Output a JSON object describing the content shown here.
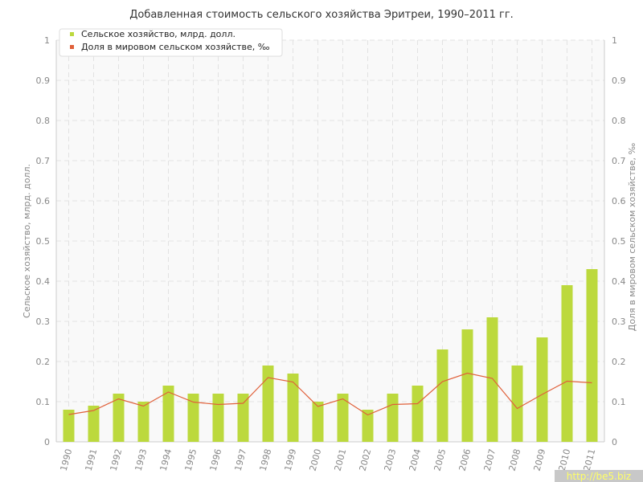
{
  "chart_data": {
    "type": "bar",
    "title": "Добавленная стоимость сельского хозяйства Эритреи, 1990–2011 гг.",
    "categories": [
      "1990",
      "1991",
      "1992",
      "1993",
      "1994",
      "1995",
      "1996",
      "1997",
      "1998",
      "1999",
      "2000",
      "2001",
      "2002",
      "2003",
      "2004",
      "2005",
      "2006",
      "2007",
      "2008",
      "2009",
      "2010",
      "2011"
    ],
    "ylabel": "Сельское хозяйство, млрд. долл.",
    "y2label": "Доля в мировом сельском хозяйстве, ‰",
    "ylim": [
      0,
      1
    ],
    "y2lim": [
      0,
      1
    ],
    "yticks": [
      "0",
      "0.1",
      "0.2",
      "0.3",
      "0.4",
      "0.5",
      "0.6",
      "0.7",
      "0.8",
      "0.9",
      "1"
    ],
    "grid": true,
    "legend_position": "top-left",
    "series": [
      {
        "name": "Сельское хозяйство, млрд. долл.",
        "type": "bar",
        "axis": "left",
        "color": "#bcd93d",
        "values": [
          0.08,
          0.09,
          0.12,
          0.1,
          0.14,
          0.12,
          0.12,
          0.12,
          0.19,
          0.17,
          0.1,
          0.12,
          0.08,
          0.12,
          0.14,
          0.23,
          0.28,
          0.31,
          0.19,
          0.26,
          0.39,
          0.43
        ]
      },
      {
        "name": "Доля в мировом сельском хозяйстве, ‰",
        "type": "line",
        "axis": "right",
        "color": "#e0603a",
        "values": [
          0.068,
          0.078,
          0.107,
          0.089,
          0.124,
          0.099,
          0.093,
          0.096,
          0.16,
          0.149,
          0.088,
          0.107,
          0.067,
          0.093,
          0.095,
          0.15,
          0.171,
          0.158,
          0.083,
          0.118,
          0.151,
          0.147
        ]
      }
    ]
  },
  "watermark": "http://be5.biz"
}
